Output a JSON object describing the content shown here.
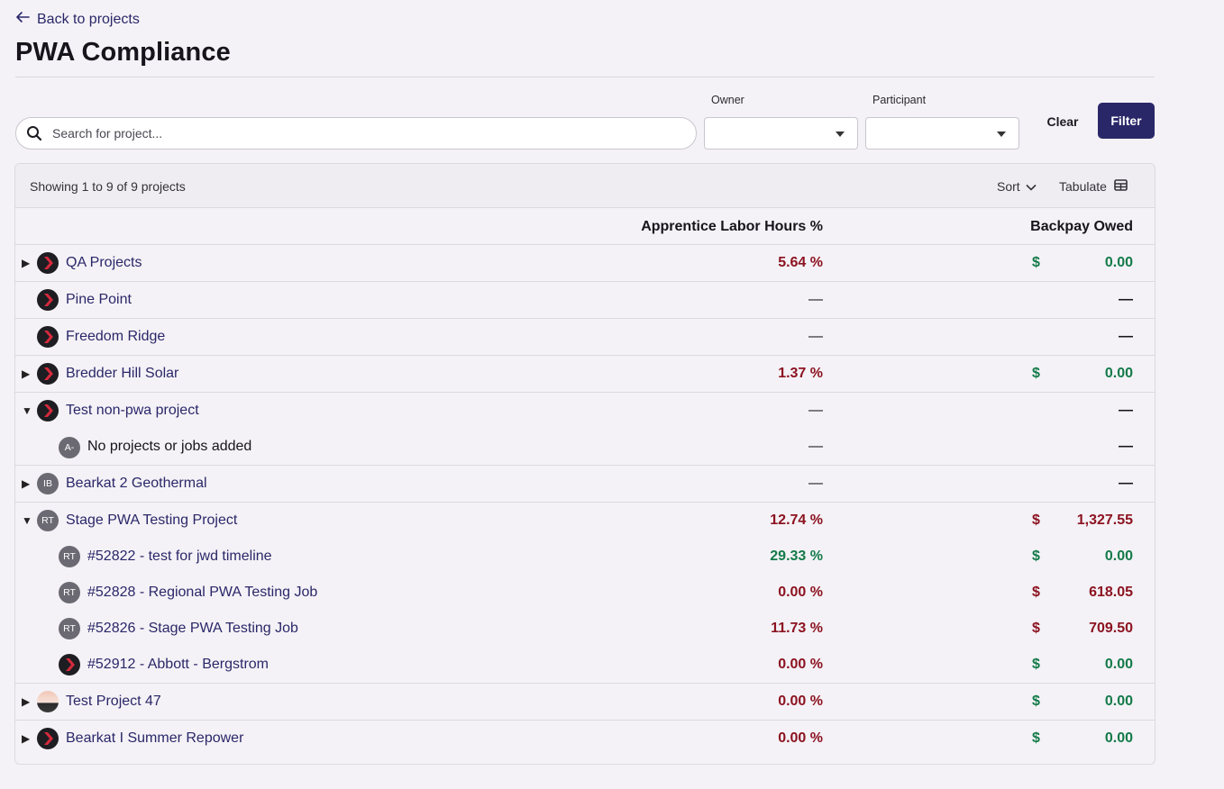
{
  "nav": {
    "back_label": "Back to projects"
  },
  "page": {
    "title": "PWA Compliance"
  },
  "filters": {
    "search_placeholder": "Search for project...",
    "owner_label": "Owner",
    "participant_label": "Participant",
    "clear_label": "Clear",
    "filter_label": "Filter"
  },
  "table": {
    "showing_text": "Showing 1 to 9 of 9 projects",
    "sort_label": "Sort",
    "tabulate_label": "Tabulate",
    "columns": {
      "apprentice": "Apprentice Labor Hours %",
      "backpay": "Backpay Owed"
    },
    "rows": [
      {
        "name": "QA Projects",
        "pct": "5.64 %",
        "dollar": "$",
        "amount": "0.00"
      },
      {
        "name": "Pine Point",
        "pct": "—",
        "amount": "—"
      },
      {
        "name": "Freedom Ridge",
        "pct": "—",
        "amount": "—"
      },
      {
        "name": "Bredder Hill Solar",
        "pct": "1.37 %",
        "dollar": "$",
        "amount": "0.00"
      },
      {
        "name": "Test non-pwa project",
        "pct": "—",
        "amount": "—"
      },
      {
        "name": "No projects or jobs added",
        "avatar": "A-",
        "pct": "—",
        "amount": "—"
      },
      {
        "name": "Bearkat 2 Geothermal",
        "avatar": "IB",
        "pct": "—",
        "amount": "—"
      },
      {
        "name": "Stage PWA Testing Project",
        "avatar": "RT",
        "pct": "12.74 %",
        "dollar": "$",
        "amount": "1,327.55"
      },
      {
        "name": "#52822 - test for jwd timeline",
        "avatar": "RT",
        "pct": "29.33 %",
        "dollar": "$",
        "amount": "0.00"
      },
      {
        "name": "#52828 - Regional PWA Testing Job",
        "avatar": "RT",
        "pct": "0.00 %",
        "dollar": "$",
        "amount": "618.05"
      },
      {
        "name": "#52826 - Stage PWA Testing Job",
        "avatar": "RT",
        "pct": "11.73 %",
        "dollar": "$",
        "amount": "709.50"
      },
      {
        "name": "#52912 - Abbott - Bergstrom",
        "pct": "0.00 %",
        "dollar": "$",
        "amount": "0.00"
      },
      {
        "name": "Test Project 47",
        "pct": "0.00 %",
        "dollar": "$",
        "amount": "0.00"
      },
      {
        "name": "Bearkat I Summer Repower",
        "pct": "0.00 %",
        "dollar": "$",
        "amount": "0.00"
      }
    ]
  },
  "icons": {
    "back": "arrow-left-icon",
    "search": "search-icon",
    "sort": "chevron-down-icon",
    "tabulate": "table-icon",
    "expand": "triangle-right-icon",
    "collapse": "triangle-down-icon"
  },
  "colors": {
    "brand": "#2a2769",
    "negative": "#8c1321",
    "positive": "#137a49"
  }
}
